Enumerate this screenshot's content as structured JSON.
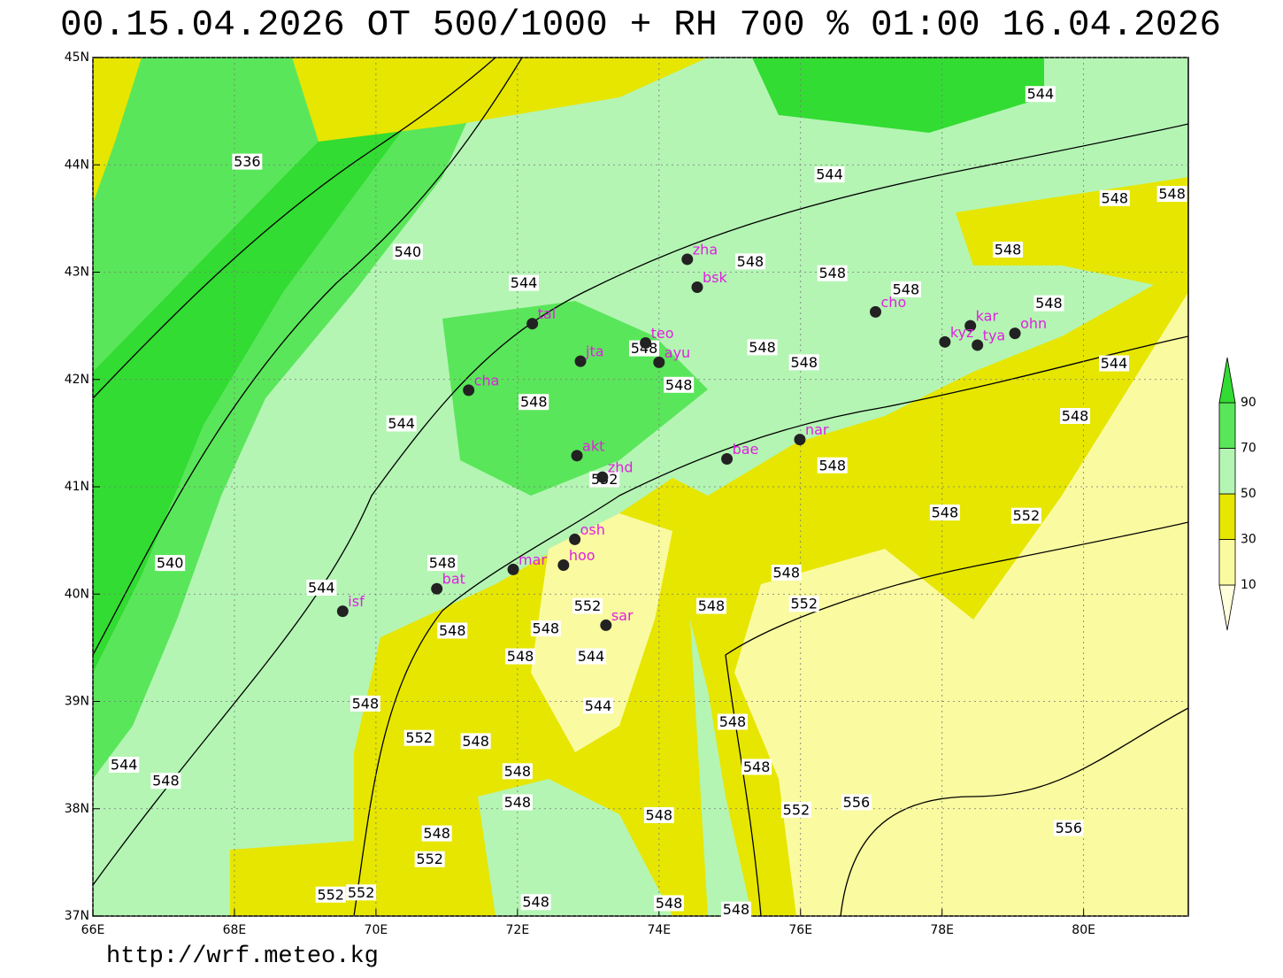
{
  "title": "00.15.04.2026 OT 500/1000 + RH 700 % 01:00 16.04.2026",
  "url": "http://wrf.meteo.kg",
  "map": {
    "xlim": [
      66,
      81.48
    ],
    "ylim": [
      37,
      45
    ],
    "xticks": [
      {
        "value": 66,
        "label": "66E"
      },
      {
        "value": 68,
        "label": "68E"
      },
      {
        "value": 70,
        "label": "70E"
      },
      {
        "value": 72,
        "label": "72E"
      },
      {
        "value": 74,
        "label": "74E"
      },
      {
        "value": 76,
        "label": "76E"
      },
      {
        "value": 78,
        "label": "78E"
      },
      {
        "value": 80,
        "label": "80E"
      }
    ],
    "yticks": [
      {
        "value": 37,
        "label": "37N"
      },
      {
        "value": 38,
        "label": "38N"
      },
      {
        "value": 39,
        "label": "39N"
      },
      {
        "value": 40,
        "label": "40N"
      },
      {
        "value": 41,
        "label": "41N"
      },
      {
        "value": 42,
        "label": "42N"
      },
      {
        "value": 43,
        "label": "43N"
      },
      {
        "value": 44,
        "label": "44N"
      },
      {
        "value": 45,
        "label": "45N"
      }
    ],
    "stations": [
      {
        "name": "zha",
        "lon": 74.4,
        "lat": 43.12
      },
      {
        "name": "bsk",
        "lon": 74.54,
        "lat": 42.86
      },
      {
        "name": "tal",
        "lon": 72.21,
        "lat": 42.52
      },
      {
        "name": "teo",
        "lon": 73.81,
        "lat": 42.34
      },
      {
        "name": "ayu",
        "lon": 74.0,
        "lat": 42.16
      },
      {
        "name": "jta",
        "lon": 72.89,
        "lat": 42.17
      },
      {
        "name": "cha",
        "lon": 71.31,
        "lat": 41.9
      },
      {
        "name": "cho",
        "lon": 77.06,
        "lat": 42.63
      },
      {
        "name": "kar",
        "lon": 78.4,
        "lat": 42.5
      },
      {
        "name": "kyz",
        "lon": 78.04,
        "lat": 42.35
      },
      {
        "name": "tya",
        "lon": 78.5,
        "lat": 42.32
      },
      {
        "name": "ohn",
        "lon": 79.03,
        "lat": 42.43
      },
      {
        "name": "nar",
        "lon": 75.99,
        "lat": 41.44
      },
      {
        "name": "bae",
        "lon": 74.96,
        "lat": 41.26
      },
      {
        "name": "akt",
        "lon": 72.84,
        "lat": 41.29
      },
      {
        "name": "zhd",
        "lon": 73.2,
        "lat": 41.09
      },
      {
        "name": "osh",
        "lon": 72.81,
        "lat": 40.51
      },
      {
        "name": "hoo",
        "lon": 72.65,
        "lat": 40.27
      },
      {
        "name": "mar",
        "lon": 71.94,
        "lat": 40.23
      },
      {
        "name": "bat",
        "lon": 70.86,
        "lat": 40.05
      },
      {
        "name": "isf",
        "lon": 69.53,
        "lat": 39.84
      },
      {
        "name": "sar",
        "lon": 73.25,
        "lat": 39.71
      }
    ],
    "contour_labels": [
      {
        "value": 544,
        "lon": 79.39,
        "lat": 44.66
      },
      {
        "value": 536,
        "lon": 68.18,
        "lat": 44.03
      },
      {
        "value": 544,
        "lon": 76.41,
        "lat": 43.91
      },
      {
        "value": 548,
        "lon": 80.44,
        "lat": 43.69
      },
      {
        "value": 548,
        "lon": 81.25,
        "lat": 43.73
      },
      {
        "value": 540,
        "lon": 70.45,
        "lat": 43.19
      },
      {
        "value": 548,
        "lon": 75.29,
        "lat": 43.1
      },
      {
        "value": 548,
        "lon": 78.93,
        "lat": 43.21
      },
      {
        "value": 548,
        "lon": 76.45,
        "lat": 42.99
      },
      {
        "value": 544,
        "lon": 72.09,
        "lat": 42.9
      },
      {
        "value": 548,
        "lon": 77.49,
        "lat": 42.84
      },
      {
        "value": 548,
        "lon": 79.51,
        "lat": 42.71
      },
      {
        "value": 548,
        "lon": 73.79,
        "lat": 42.29
      },
      {
        "value": 548,
        "lon": 75.46,
        "lat": 42.3
      },
      {
        "value": 548,
        "lon": 76.05,
        "lat": 42.16
      },
      {
        "value": 548,
        "lon": 74.28,
        "lat": 41.95
      },
      {
        "value": 544,
        "lon": 80.43,
        "lat": 42.15
      },
      {
        "value": 548,
        "lon": 72.23,
        "lat": 41.79
      },
      {
        "value": 544,
        "lon": 70.36,
        "lat": 41.59
      },
      {
        "value": 548,
        "lon": 79.88,
        "lat": 41.66
      },
      {
        "value": 548,
        "lon": 76.45,
        "lat": 41.2
      },
      {
        "value": 552,
        "lon": 73.23,
        "lat": 41.07
      },
      {
        "value": 548,
        "lon": 78.04,
        "lat": 40.76
      },
      {
        "value": 552,
        "lon": 79.19,
        "lat": 40.73
      },
      {
        "value": 540,
        "lon": 67.09,
        "lat": 40.29
      },
      {
        "value": 548,
        "lon": 70.94,
        "lat": 40.29
      },
      {
        "value": 548,
        "lon": 75.8,
        "lat": 40.2
      },
      {
        "value": 544,
        "lon": 69.23,
        "lat": 40.06
      },
      {
        "value": 552,
        "lon": 76.05,
        "lat": 39.91
      },
      {
        "value": 552,
        "lon": 72.99,
        "lat": 39.89
      },
      {
        "value": 548,
        "lon": 74.74,
        "lat": 39.89
      },
      {
        "value": 548,
        "lon": 71.08,
        "lat": 39.66
      },
      {
        "value": 548,
        "lon": 72.4,
        "lat": 39.68
      },
      {
        "value": 548,
        "lon": 72.04,
        "lat": 39.42
      },
      {
        "value": 544,
        "lon": 73.04,
        "lat": 39.42
      },
      {
        "value": 548,
        "lon": 69.85,
        "lat": 38.98
      },
      {
        "value": 544,
        "lon": 73.14,
        "lat": 38.96
      },
      {
        "value": 548,
        "lon": 75.04,
        "lat": 38.81
      },
      {
        "value": 552,
        "lon": 70.61,
        "lat": 38.66
      },
      {
        "value": 548,
        "lon": 71.41,
        "lat": 38.63
      },
      {
        "value": 548,
        "lon": 75.38,
        "lat": 38.39
      },
      {
        "value": 544,
        "lon": 66.44,
        "lat": 38.41
      },
      {
        "value": 548,
        "lon": 67.03,
        "lat": 38.26
      },
      {
        "value": 548,
        "lon": 72.0,
        "lat": 38.35
      },
      {
        "value": 548,
        "lon": 72.0,
        "lat": 38.06
      },
      {
        "value": 552,
        "lon": 75.94,
        "lat": 37.99
      },
      {
        "value": 556,
        "lon": 76.79,
        "lat": 38.06
      },
      {
        "value": 548,
        "lon": 74.0,
        "lat": 37.94
      },
      {
        "value": 556,
        "lon": 79.79,
        "lat": 37.82
      },
      {
        "value": 548,
        "lon": 70.86,
        "lat": 37.77
      },
      {
        "value": 552,
        "lon": 70.76,
        "lat": 37.53
      },
      {
        "value": 552,
        "lon": 69.36,
        "lat": 37.2
      },
      {
        "value": 552,
        "lon": 69.79,
        "lat": 37.22
      },
      {
        "value": 548,
        "lon": 72.26,
        "lat": 37.13
      },
      {
        "value": 548,
        "lon": 74.14,
        "lat": 37.12
      },
      {
        "value": 548,
        "lon": 75.09,
        "lat": 37.06
      }
    ]
  },
  "legend": {
    "levels": [
      10,
      30,
      50,
      70,
      90
    ],
    "colors": [
      "#ffffdc",
      "#fafaa0",
      "#e6e600",
      "#b4f5b4",
      "#5ae65a",
      "#32dc32"
    ]
  }
}
